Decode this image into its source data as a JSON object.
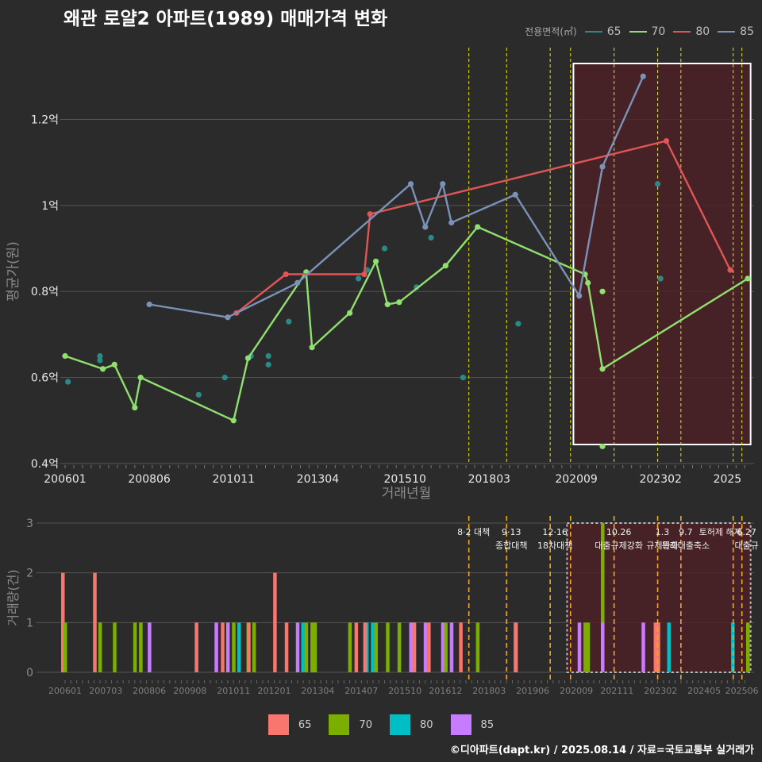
{
  "title": "왜관 로얄2 아파트(1989) 매매가격 변화",
  "footer": "©디아파트(dapt.kr) / 2025.08.14 / 자료=국토교통부 실거래가",
  "colors": {
    "background": "#2b2b2b",
    "grid": "#555555",
    "highlight_fill": "#4d1f24",
    "highlight_border": "#ffffff",
    "policy_line_top": "#e6e600",
    "policy_line_bottom": "#f5a623"
  },
  "chart_data": [
    {
      "type": "line",
      "name": "price",
      "xlabel": "거래년월",
      "ylabel": "평균가(원)",
      "ylim": [
        0.4,
        1.33
      ],
      "x_ticks": [
        "200601",
        "200806",
        "201011",
        "201304",
        "201510",
        "201803",
        "202009",
        "202302",
        "2025"
      ],
      "y_ticks": [
        "0.4억",
        "0.6억",
        "0.8억",
        "1억",
        "1.2억"
      ],
      "y_tick_values": [
        0.4,
        0.6,
        0.8,
        1.0,
        1.2
      ],
      "legend": {
        "title": "전용면적(㎡)",
        "position": "top-right",
        "items": [
          {
            "label": "65",
            "color": "#2a8a8a"
          },
          {
            "label": "70",
            "color": "#90e070"
          },
          {
            "label": "80",
            "color": "#e05555"
          },
          {
            "label": "85",
            "color": "#7a92b8"
          }
        ]
      },
      "series": [
        {
          "name": "65",
          "color": "#2a8a8a",
          "line": false,
          "points": [
            [
              "2006-02",
              0.59
            ],
            [
              "2007-01",
              0.64
            ],
            [
              "2007-01",
              0.65
            ],
            [
              "2009-11",
              0.56
            ],
            [
              "2010-08",
              0.6
            ],
            [
              "2011-05",
              0.65
            ],
            [
              "2011-11",
              0.63
            ],
            [
              "2011-11",
              0.65
            ],
            [
              "2012-06",
              0.73
            ],
            [
              "2014-06",
              0.83
            ],
            [
              "2014-09",
              0.85
            ],
            [
              "2015-03",
              0.9
            ],
            [
              "2016-02",
              0.81
            ],
            [
              "2016-07",
              0.925
            ],
            [
              "2017-06",
              0.6
            ],
            [
              "2019-01",
              0.725
            ],
            [
              "2023-01",
              1.05
            ],
            [
              "2023-02",
              0.83
            ]
          ]
        },
        {
          "name": "70",
          "color": "#90e070",
          "line": true,
          "points": [
            [
              "2006-01",
              0.65
            ],
            [
              "2007-02",
              0.62
            ],
            [
              "2007-06",
              0.63
            ],
            [
              "2008-01",
              0.53
            ],
            [
              "2008-03",
              0.6
            ],
            [
              "2010-11",
              0.5
            ],
            [
              "2011-04",
              0.645
            ],
            [
              "2012-12",
              0.845
            ],
            [
              "2013-02",
              0.67
            ],
            [
              "2014-03",
              0.75
            ],
            [
              "2014-12",
              0.87
            ],
            [
              "2015-04",
              0.77
            ],
            [
              "2015-08",
              0.775
            ],
            [
              "2016-12",
              0.86
            ],
            [
              "2017-11",
              0.95
            ],
            [
              "2020-12",
              0.84
            ],
            [
              "2021-01",
              0.82
            ],
            [
              "2021-06",
              0.62
            ],
            [
              "2025-08",
              0.83
            ]
          ],
          "extra_points": [
            [
              "2021-06",
              0.8
            ],
            [
              "2021-06",
              0.44
            ]
          ]
        },
        {
          "name": "80",
          "color": "#e05555",
          "line": true,
          "points": [
            [
              "2010-12",
              0.75
            ],
            [
              "2012-05",
              0.84
            ],
            [
              "2014-08",
              0.84
            ],
            [
              "2014-10",
              0.98
            ],
            [
              "2023-04",
              1.15
            ],
            [
              "2025-02",
              0.85
            ]
          ]
        },
        {
          "name": "85",
          "color": "#7a92b8",
          "line": true,
          "points": [
            [
              "2008-06",
              0.77
            ],
            [
              "2010-09",
              0.74
            ],
            [
              "2012-09",
              0.82
            ],
            [
              "2015-12",
              1.05
            ],
            [
              "2016-05",
              0.95
            ],
            [
              "2016-11",
              1.05
            ],
            [
              "2017-02",
              0.96
            ],
            [
              "2018-12",
              1.025
            ],
            [
              "2020-10",
              0.79
            ],
            [
              "2021-06",
              1.09
            ],
            [
              "2022-08",
              1.3
            ]
          ]
        }
      ]
    },
    {
      "type": "bar",
      "name": "volume",
      "xlabel": "",
      "ylabel": "거래량(건)",
      "ylim": [
        0,
        3
      ],
      "y_ticks": [
        "0",
        "1",
        "2",
        "3"
      ],
      "y_tick_values": [
        0,
        1,
        2,
        3
      ],
      "x_ticks": [
        "200601",
        "200703",
        "200806",
        "200908",
        "201011",
        "201201",
        "201304",
        "201407",
        "201510",
        "201612",
        "201803",
        "201906",
        "202009",
        "202111",
        "202302",
        "202405",
        "202506"
      ],
      "legend": {
        "position": "bottom",
        "items": [
          {
            "label": "65",
            "color": "#f8766d"
          },
          {
            "label": "70",
            "color": "#7cae00"
          },
          {
            "label": "80",
            "color": "#00bfc4"
          },
          {
            "label": "85",
            "color": "#c77cff"
          }
        ]
      },
      "bars": [
        [
          "2006-01",
          "65",
          2
        ],
        [
          "2006-01",
          "70",
          1
        ],
        [
          "2006-12",
          "65",
          2
        ],
        [
          "2007-01",
          "70",
          1
        ],
        [
          "2007-06",
          "70",
          1
        ],
        [
          "2008-01",
          "70",
          1
        ],
        [
          "2008-03",
          "70",
          1
        ],
        [
          "2008-06",
          "85",
          1
        ],
        [
          "2009-11",
          "65",
          1
        ],
        [
          "2010-05",
          "85",
          1
        ],
        [
          "2010-08",
          "65",
          1
        ],
        [
          "2010-09",
          "85",
          1
        ],
        [
          "2010-11",
          "70",
          1
        ],
        [
          "2010-12",
          "80",
          1
        ],
        [
          "2011-04",
          "70",
          1
        ],
        [
          "2011-05",
          "65",
          1
        ],
        [
          "2011-06",
          "70",
          1
        ],
        [
          "2012-02",
          "65",
          2
        ],
        [
          "2012-06",
          "65",
          1
        ],
        [
          "2012-09",
          "85",
          1
        ],
        [
          "2012-10",
          "80",
          1
        ],
        [
          "2012-12",
          "70",
          1
        ],
        [
          "2013-02",
          "70",
          1
        ],
        [
          "2013-03",
          "70",
          1
        ],
        [
          "2014-03",
          "70",
          1
        ],
        [
          "2014-06",
          "65",
          1
        ],
        [
          "2014-08",
          "80",
          1
        ],
        [
          "2014-09",
          "65",
          1
        ],
        [
          "2014-10",
          "80",
          1
        ],
        [
          "2014-12",
          "70",
          1
        ],
        [
          "2015-04",
          "70",
          1
        ],
        [
          "2015-08",
          "70",
          1
        ],
        [
          "2015-12",
          "85",
          1
        ],
        [
          "2016-01",
          "85",
          1
        ],
        [
          "2016-02",
          "65",
          1
        ],
        [
          "2016-05",
          "85",
          1
        ],
        [
          "2016-07",
          "65",
          1
        ],
        [
          "2016-11",
          "85",
          1
        ],
        [
          "2016-12",
          "70",
          1
        ],
        [
          "2017-02",
          "85",
          1
        ],
        [
          "2017-06",
          "65",
          1
        ],
        [
          "2017-11",
          "70",
          1
        ],
        [
          "2018-12",
          "85",
          1
        ],
        [
          "2019-01",
          "65",
          1
        ],
        [
          "2020-10",
          "85",
          1
        ],
        [
          "2020-12",
          "70",
          1
        ],
        [
          "2021-01",
          "70",
          1
        ],
        [
          "2021-06",
          "70",
          3
        ],
        [
          "2021-06",
          "85",
          1
        ],
        [
          "2022-08",
          "85",
          1
        ],
        [
          "2023-01",
          "65",
          1
        ],
        [
          "2023-02",
          "65",
          1
        ],
        [
          "2023-04",
          "80",
          1
        ],
        [
          "2025-02",
          "80",
          1
        ],
        [
          "2025-08",
          "70",
          1
        ]
      ],
      "policy_labels": [
        {
          "date": "2017-08",
          "label": "8·2 대책"
        },
        {
          "date": "2018-09",
          "label": "9·13"
        },
        {
          "date": "2018-09",
          "label": "종합대책"
        },
        {
          "date": "2019-12",
          "label": "12·16"
        },
        {
          "date": "2019-12",
          "label": "18차대책"
        },
        {
          "date": "2021-10",
          "label": "10.26"
        },
        {
          "date": "2021-10",
          "label": "대출규제강화"
        },
        {
          "date": "2023-01",
          "label": "1.3"
        },
        {
          "date": "2023-01",
          "label": "규제완화"
        },
        {
          "date": "2023-09",
          "label": "9.7"
        },
        {
          "date": "2023-09",
          "label": "특례대출축소"
        },
        {
          "date": "2024-09",
          "label": "토허제 해제"
        },
        {
          "date": "2025-06",
          "label": "6.27"
        },
        {
          "date": "2025-06",
          "label": "대출규"
        }
      ]
    }
  ],
  "policy_dates": [
    "2017-08",
    "2018-09",
    "2019-12",
    "2020-07",
    "2021-10",
    "2023-01",
    "2023-09",
    "2025-03",
    "2025-06"
  ],
  "highlight_range": [
    "2020-08",
    "2025-09"
  ]
}
